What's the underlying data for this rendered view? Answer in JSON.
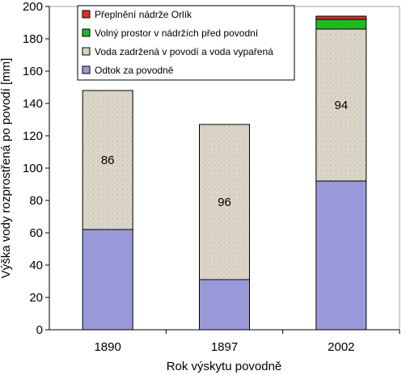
{
  "chart_data": {
    "type": "bar",
    "stacked": true,
    "title": "",
    "xlabel": "Rok výskytu povodně",
    "ylabel": "Výška vody rozprostřená po povodí [mm]",
    "ylim": [
      0,
      200
    ],
    "yticks": [
      0,
      20,
      40,
      60,
      80,
      100,
      120,
      140,
      160,
      180,
      200
    ],
    "categories": [
      "1890",
      "1897",
      "2002"
    ],
    "grid": false,
    "legend_position": "top-left",
    "series": [
      {
        "name": "Odtok za povodně",
        "values": [
          62,
          31,
          92
        ],
        "color": "#9999d9"
      },
      {
        "name": "Voda zadržená v povodí a voda vypařená",
        "values": [
          86,
          96,
          94
        ],
        "color": "#dcd6c8",
        "labels": [
          "86",
          "96",
          "94"
        ]
      },
      {
        "name": "Volný prostor v nádržích před povodní",
        "values": [
          0,
          0,
          6
        ],
        "color": "#22b822"
      },
      {
        "name": "Přeplnění nádrže Orlík",
        "values": [
          0,
          0,
          2
        ],
        "color": "#dd3030"
      }
    ],
    "legend_order": [
      3,
      2,
      1,
      0
    ]
  }
}
